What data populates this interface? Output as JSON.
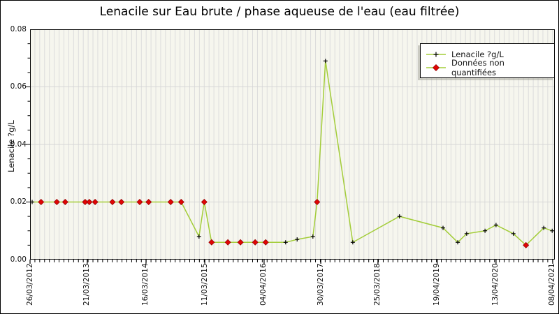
{
  "title": "Lenacile sur Eau brute / phase aqueuse de l'eau (eau filtrée)",
  "colors": {
    "plot_background": "#f6f6ee",
    "minor_grid": "#dcdcdc",
    "major_grid": "#d6d6d6",
    "line": "#a3cd39",
    "quantified_marker": "#000000",
    "non_quantified_marker": "#e00505",
    "axis": "#000000",
    "text": "#111111"
  },
  "legend": {
    "items": [
      {
        "label": "Lenacile ?g/L",
        "marker": "black-plus-on-green-line"
      },
      {
        "label": "Données non quantifiées",
        "marker": "red-diamond-on-green-line"
      }
    ]
  },
  "chart_data": {
    "type": "line",
    "title": "Lenacile sur Eau brute / phase aqueuse de l'eau (eau filtrée)",
    "xlabel": "",
    "ylabel": "Lenacile ?g/L",
    "ylim": [
      0,
      0.08
    ],
    "grid": "minor vertical monthly gridlines; horizontal gridlines each 0.02",
    "legend_position": "top-right inside plot",
    "yticks": [
      {
        "label": "0.00",
        "value": 0.0
      },
      {
        "label": "0.02",
        "value": 0.02
      },
      {
        "label": "0.04",
        "value": 0.04
      },
      {
        "label": "0.06",
        "value": 0.06
      },
      {
        "label": "0.08",
        "value": 0.08
      }
    ],
    "y_minor_step": 0.005,
    "x_minor_gridline_step_pct": 0.922,
    "xticks": [
      {
        "label": "26/03/2012",
        "pct": 0.0
      },
      {
        "label": "21/03/2013",
        "pct": 10.9
      },
      {
        "label": "16/03/2014",
        "pct": 22.1
      },
      {
        "label": "11/03/2015",
        "pct": 33.3
      },
      {
        "label": "04/04/2016",
        "pct": 44.6
      },
      {
        "label": "30/03/2017",
        "pct": 55.4
      },
      {
        "label": "25/03/2018",
        "pct": 66.3
      },
      {
        "label": "19/04/2019",
        "pct": 77.6
      },
      {
        "label": "13/04/2020",
        "pct": 88.8
      },
      {
        "label": "08/04/2021",
        "pct": 99.6
      }
    ],
    "series": [
      {
        "name": "Lenacile ?g/L",
        "marker": "plus",
        "color": "#000000",
        "line_color": "#a3cd39"
      },
      {
        "name": "Données non quantifiées",
        "marker": "diamond",
        "color": "#e00505",
        "line_color": "#a3cd39"
      }
    ],
    "points": [
      {
        "date_est": "Apr 2012",
        "pct": 0.4,
        "value": 0.02,
        "quantified": true
      },
      {
        "date_est": "Jun 2012",
        "pct": 2.1,
        "value": 0.02,
        "quantified": false
      },
      {
        "date_est": "Sep 2012",
        "pct": 5.1,
        "value": 0.02,
        "quantified": false
      },
      {
        "date_est": "Nov 2012",
        "pct": 6.7,
        "value": 0.02,
        "quantified": false
      },
      {
        "date_est": "Mar 2013",
        "pct": 10.5,
        "value": 0.02,
        "quantified": false
      },
      {
        "date_est": "Apr 2013",
        "pct": 11.3,
        "value": 0.02,
        "quantified": false
      },
      {
        "date_est": "May 2013",
        "pct": 12.4,
        "value": 0.02,
        "quantified": false
      },
      {
        "date_est": "Sep 2013",
        "pct": 15.7,
        "value": 0.02,
        "quantified": false
      },
      {
        "date_est": "Oct 2013",
        "pct": 17.4,
        "value": 0.02,
        "quantified": false
      },
      {
        "date_est": "Feb 2014",
        "pct": 20.9,
        "value": 0.02,
        "quantified": false
      },
      {
        "date_est": "Apr 2014",
        "pct": 22.6,
        "value": 0.02,
        "quantified": false
      },
      {
        "date_est": "Aug 2014",
        "pct": 26.8,
        "value": 0.02,
        "quantified": false
      },
      {
        "date_est": "Nov 2014",
        "pct": 28.8,
        "value": 0.02,
        "quantified": false
      },
      {
        "date_est": "Feb 2015",
        "pct": 32.2,
        "value": 0.008,
        "quantified": true
      },
      {
        "date_est": "Mar 2015",
        "pct": 33.2,
        "value": 0.02,
        "quantified": false
      },
      {
        "date_est": "May 2015",
        "pct": 34.6,
        "value": 0.006,
        "quantified": false
      },
      {
        "date_est": "Aug 2015",
        "pct": 37.7,
        "value": 0.006,
        "quantified": false
      },
      {
        "date_est": "Nov 2015",
        "pct": 40.1,
        "value": 0.006,
        "quantified": false
      },
      {
        "date_est": "Feb 2016",
        "pct": 42.9,
        "value": 0.006,
        "quantified": false
      },
      {
        "date_est": "Apr 2016",
        "pct": 44.9,
        "value": 0.006,
        "quantified": false
      },
      {
        "date_est": "Aug 2016",
        "pct": 48.7,
        "value": 0.006,
        "quantified": true
      },
      {
        "date_est": "Oct 2016",
        "pct": 50.9,
        "value": 0.007,
        "quantified": true
      },
      {
        "date_est": "Feb 2017",
        "pct": 53.9,
        "value": 0.008,
        "quantified": true
      },
      {
        "date_est": "Mar 2017",
        "pct": 54.7,
        "value": 0.02,
        "quantified": false
      },
      {
        "date_est": "Apr 2017",
        "pct": 56.3,
        "value": 0.069,
        "quantified": true
      },
      {
        "date_est": "Oct 2017",
        "pct": 61.5,
        "value": 0.006,
        "quantified": true
      },
      {
        "date_est": "Aug 2018",
        "pct": 70.4,
        "value": 0.015,
        "quantified": true
      },
      {
        "date_est": "May 2019",
        "pct": 78.7,
        "value": 0.011,
        "quantified": true
      },
      {
        "date_est": "Aug 2019",
        "pct": 81.5,
        "value": 0.006,
        "quantified": true
      },
      {
        "date_est": "Oct 2019",
        "pct": 83.2,
        "value": 0.009,
        "quantified": true
      },
      {
        "date_est": "Jan 2020",
        "pct": 86.7,
        "value": 0.01,
        "quantified": true
      },
      {
        "date_est": "Apr 2020",
        "pct": 88.8,
        "value": 0.012,
        "quantified": true
      },
      {
        "date_est": "Jul 2020",
        "pct": 92.1,
        "value": 0.009,
        "quantified": true
      },
      {
        "date_est": "Oct 2020",
        "pct": 94.5,
        "value": 0.005,
        "quantified": false
      },
      {
        "date_est": "Feb 2021",
        "pct": 97.9,
        "value": 0.011,
        "quantified": true
      },
      {
        "date_est": "Apr 2021",
        "pct": 99.5,
        "value": 0.01,
        "quantified": true
      }
    ]
  }
}
